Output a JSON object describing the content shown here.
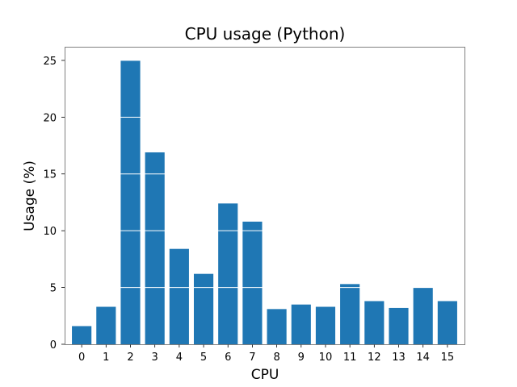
{
  "chart_data": {
    "type": "bar",
    "title": "CPU usage (Python)",
    "xlabel": "CPU",
    "ylabel": "Usage (%)",
    "categories": [
      "0",
      "1",
      "2",
      "3",
      "4",
      "5",
      "6",
      "7",
      "8",
      "9",
      "10",
      "11",
      "12",
      "13",
      "14",
      "15"
    ],
    "values": [
      1.6,
      3.3,
      25.0,
      16.9,
      8.4,
      6.2,
      12.4,
      10.8,
      3.1,
      3.5,
      3.3,
      5.3,
      3.8,
      3.2,
      5.0,
      3.8
    ],
    "yticks": [
      0,
      5,
      10,
      15,
      20,
      25
    ],
    "ylim": [
      0,
      26.2
    ],
    "grid": "horizontal lines drawn over bars only",
    "colors": {
      "bar": "#1f77b4",
      "grid": "#ffffff",
      "frame": "#808080"
    }
  }
}
